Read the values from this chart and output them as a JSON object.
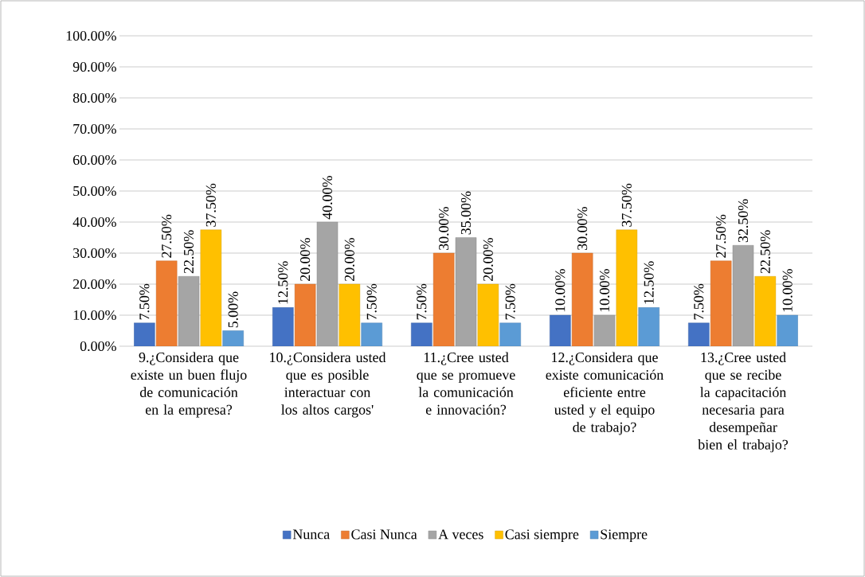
{
  "chart_data": {
    "type": "bar",
    "categories": [
      "9.¿Considera que existe un buen flujo de comunicación en la empresa?",
      "10.¿Considera usted que es posible interactuar con los altos cargos'",
      "11.¿Cree usted que se promueve la comunicación e innovación?",
      "12.¿Considera que existe comunicación eficiente entre usted y el equipo de trabajo?",
      "13.¿Cree usted que se recibe la capacitación necesaria para desempeñar bien el trabajo?"
    ],
    "series": [
      {
        "name": "Nunca",
        "color": "#4472c4",
        "values": [
          7.5,
          12.5,
          7.5,
          10,
          7.5
        ],
        "value_labels": [
          "7.50%",
          "12.50%",
          "7.50%",
          "10.00%",
          "7.50%"
        ]
      },
      {
        "name": "Casi Nunca",
        "color": "#ed7d31",
        "values": [
          27.5,
          20,
          30,
          30,
          27.5
        ],
        "value_labels": [
          "27.50%",
          "20.00%",
          "30.00%",
          "30.00%",
          "27.50%"
        ]
      },
      {
        "name": "A veces",
        "color": "#a5a5a5",
        "values": [
          22.5,
          40,
          35,
          10,
          32.5
        ],
        "value_labels": [
          "22.50%",
          "40.00%",
          "35.00%",
          "10.00%",
          "32.50%"
        ]
      },
      {
        "name": "Casi siempre",
        "color": "#ffc000",
        "values": [
          37.5,
          20,
          20,
          37.5,
          22.5
        ],
        "value_labels": [
          "37.50%",
          "20.00%",
          "20.00%",
          "37.50%",
          "22.50%"
        ]
      },
      {
        "name": "Siempre",
        "color": "#5b9bd5",
        "values": [
          5,
          7.5,
          7.5,
          12.5,
          10
        ],
        "value_labels": [
          "5.00%",
          "7.50%",
          "7.50%",
          "12.50%",
          "10.00%"
        ]
      }
    ],
    "ylim": [
      0,
      100
    ],
    "yticks": [
      {
        "value": 0,
        "label": "0.00%"
      },
      {
        "value": 10,
        "label": "10.00%"
      },
      {
        "value": 20,
        "label": "20.00%"
      },
      {
        "value": 30,
        "label": "30.00%"
      },
      {
        "value": 40,
        "label": "40.00%"
      },
      {
        "value": 50,
        "label": "50.00%"
      },
      {
        "value": 60,
        "label": "60.00%"
      },
      {
        "value": 70,
        "label": "70.00%"
      },
      {
        "value": 80,
        "label": "80.00%"
      },
      {
        "value": 90,
        "label": "90.00%"
      },
      {
        "value": 100,
        "label": "100.00%"
      }
    ],
    "grid": "y",
    "legend": "bottom"
  }
}
